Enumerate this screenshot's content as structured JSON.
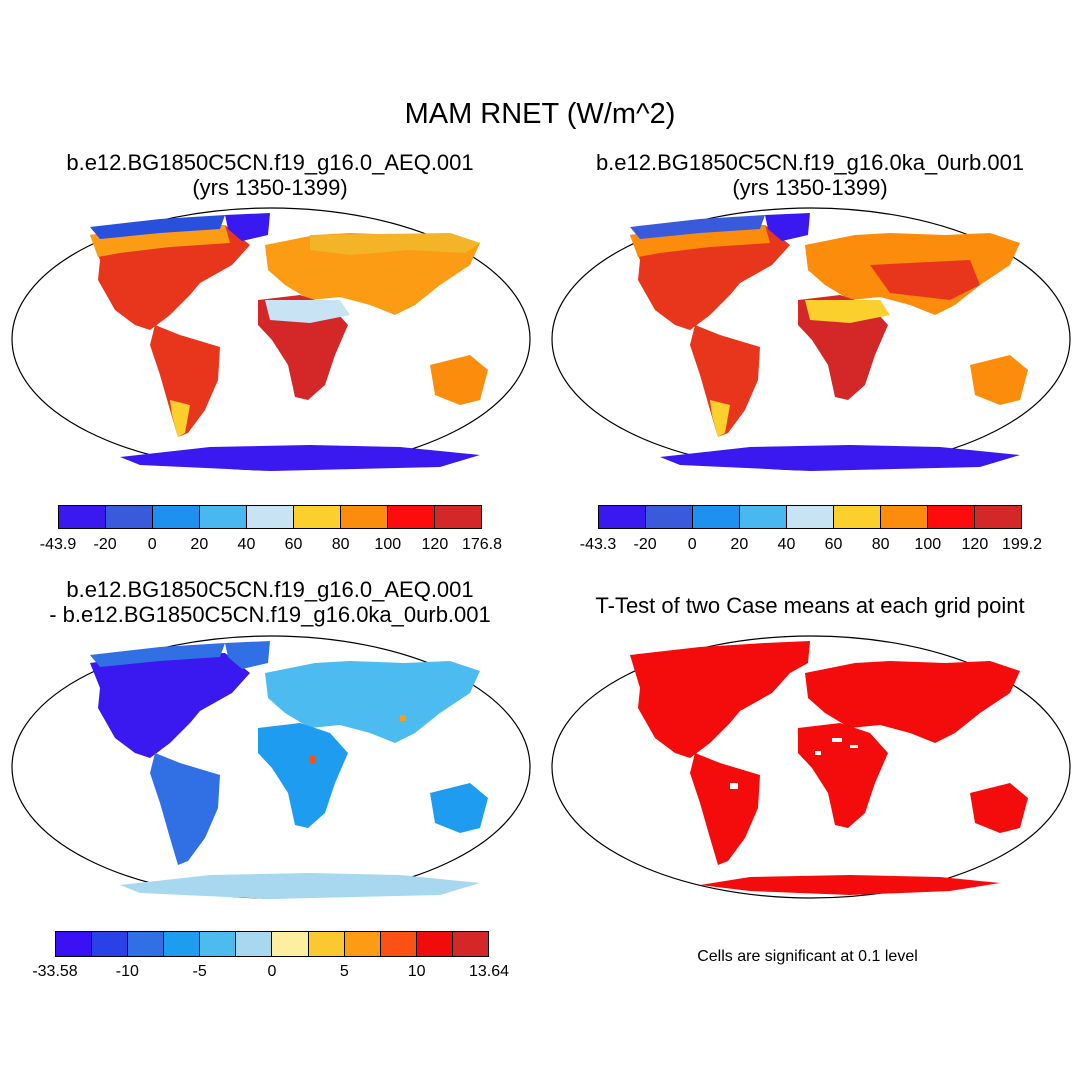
{
  "title": "MAM RNET (W/m^2)",
  "panels": [
    {
      "id": "case1",
      "title_line1": "b.e12.BG1850C5CN.f19_g16.0_AEQ.001",
      "title_line2": "(yrs 1350-1399)",
      "colorbar": {
        "colors": [
          "#3a18f0",
          "#3a5adc",
          "#1e90f0",
          "#4ab8f0",
          "#c8e4f4",
          "#fcd02c",
          "#fc8c0c",
          "#fc0c0c",
          "#d42828"
        ],
        "labels": [
          "-43.9",
          "-20",
          "0",
          "20",
          "40",
          "60",
          "80",
          "100",
          "120",
          "176.8"
        ]
      }
    },
    {
      "id": "case2",
      "title_line1": "b.e12.BG1850C5CN.f19_g16.0ka_0urb.001",
      "title_line2": "(yrs 1350-1399)",
      "colorbar": {
        "colors": [
          "#3a18f0",
          "#3a5adc",
          "#1e90f0",
          "#4ab8f0",
          "#c8e4f4",
          "#fcd02c",
          "#fc8c0c",
          "#fc0c0c",
          "#d42828"
        ],
        "labels": [
          "-43.3",
          "-20",
          "0",
          "20",
          "40",
          "60",
          "80",
          "100",
          "120",
          "199.2"
        ]
      }
    },
    {
      "id": "diff",
      "title_line1": "b.e12.BG1850C5CN.f19_g16.0_AEQ.001",
      "title_line2": "- b.e12.BG1850C5CN.f19_g16.0ka_0urb.001",
      "colorbar": {
        "colors": [
          "#3a10f4",
          "#2a40e8",
          "#3070e4",
          "#1e9cf0",
          "#4cbcf0",
          "#a8d8f0",
          "#fcf0a0",
          "#fcc830",
          "#fc9c14",
          "#fc5014",
          "#f00c0c",
          "#d42828"
        ],
        "labels": [
          "-33.58",
          "-10",
          "-5",
          "0",
          "5",
          "10",
          "13.64"
        ]
      }
    },
    {
      "id": "ttest",
      "title_line1": "T-Test of two Case means at each grid point",
      "note": "Cells are significant at 0.1 level",
      "colors": {
        "significant": "#f40c0c"
      }
    }
  ]
}
